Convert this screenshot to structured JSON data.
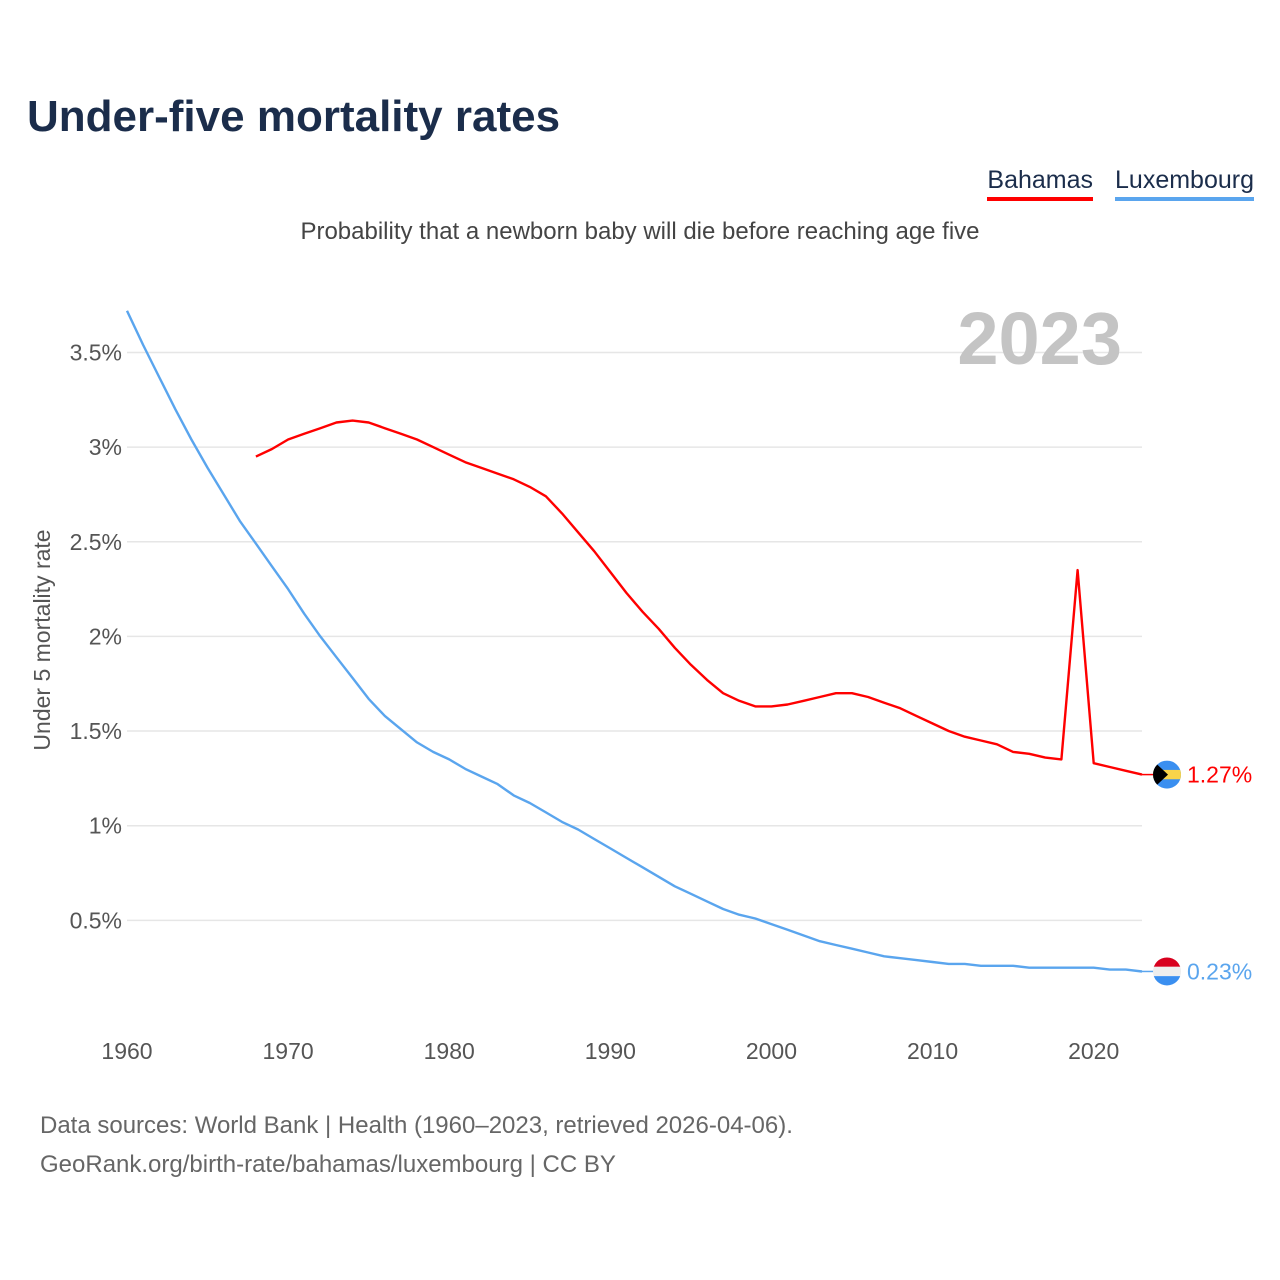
{
  "chart_data": {
    "type": "line",
    "title": "Under-five mortality rates",
    "subtitle": "Probability that a newborn baby will die before reaching age five",
    "ylabel": "Under 5 mortality rate",
    "xlabel": "",
    "current_year": "2023",
    "xlim": [
      1960,
      2023
    ],
    "ylim": [
      0,
      3.8
    ],
    "x_ticks": [
      1960,
      1970,
      1980,
      1990,
      2000,
      2010,
      2020
    ],
    "y_ticks": [
      0.5,
      1,
      1.5,
      2,
      2.5,
      3,
      3.5
    ],
    "y_tick_labels": [
      "0.5%",
      "1%",
      "1.5%",
      "2%",
      "2.5%",
      "3%",
      "3.5%"
    ],
    "grid": true,
    "legend_position": "top-right",
    "series": [
      {
        "name": "Bahamas",
        "color": "#ff0000",
        "end_label": "1.27%",
        "start_year": 1968,
        "values": [
          2.95,
          2.99,
          3.04,
          3.07,
          3.1,
          3.13,
          3.14,
          3.13,
          3.1,
          3.07,
          3.04,
          3.0,
          2.96,
          2.92,
          2.89,
          2.86,
          2.83,
          2.79,
          2.74,
          2.65,
          2.55,
          2.45,
          2.34,
          2.23,
          2.13,
          2.04,
          1.94,
          1.85,
          1.77,
          1.7,
          1.66,
          1.63,
          1.63,
          1.64,
          1.66,
          1.68,
          1.7,
          1.7,
          1.68,
          1.65,
          1.62,
          1.58,
          1.54,
          1.5,
          1.47,
          1.45,
          1.43,
          1.39,
          1.38,
          1.36,
          1.35,
          2.35,
          1.33,
          1.31,
          1.29,
          1.27
        ]
      },
      {
        "name": "Luxembourg",
        "color": "#5aa5ee",
        "end_label": "0.23%",
        "start_year": 1960,
        "values": [
          3.72,
          3.54,
          3.37,
          3.2,
          3.04,
          2.89,
          2.75,
          2.61,
          2.49,
          2.37,
          2.25,
          2.12,
          2.0,
          1.89,
          1.78,
          1.67,
          1.58,
          1.51,
          1.44,
          1.39,
          1.35,
          1.3,
          1.26,
          1.22,
          1.16,
          1.12,
          1.07,
          1.02,
          0.98,
          0.93,
          0.88,
          0.83,
          0.78,
          0.73,
          0.68,
          0.64,
          0.6,
          0.56,
          0.53,
          0.51,
          0.48,
          0.45,
          0.42,
          0.39,
          0.37,
          0.35,
          0.33,
          0.31,
          0.3,
          0.29,
          0.28,
          0.27,
          0.27,
          0.26,
          0.26,
          0.26,
          0.25,
          0.25,
          0.25,
          0.25,
          0.25,
          0.24,
          0.24,
          0.23
        ]
      }
    ]
  },
  "footer": {
    "line1": "Data sources: World Bank | Health (1960–2023, retrieved 2026-04-06).",
    "line2": "GeoRank.org/birth-rate/bahamas/luxembourg | CC BY"
  }
}
